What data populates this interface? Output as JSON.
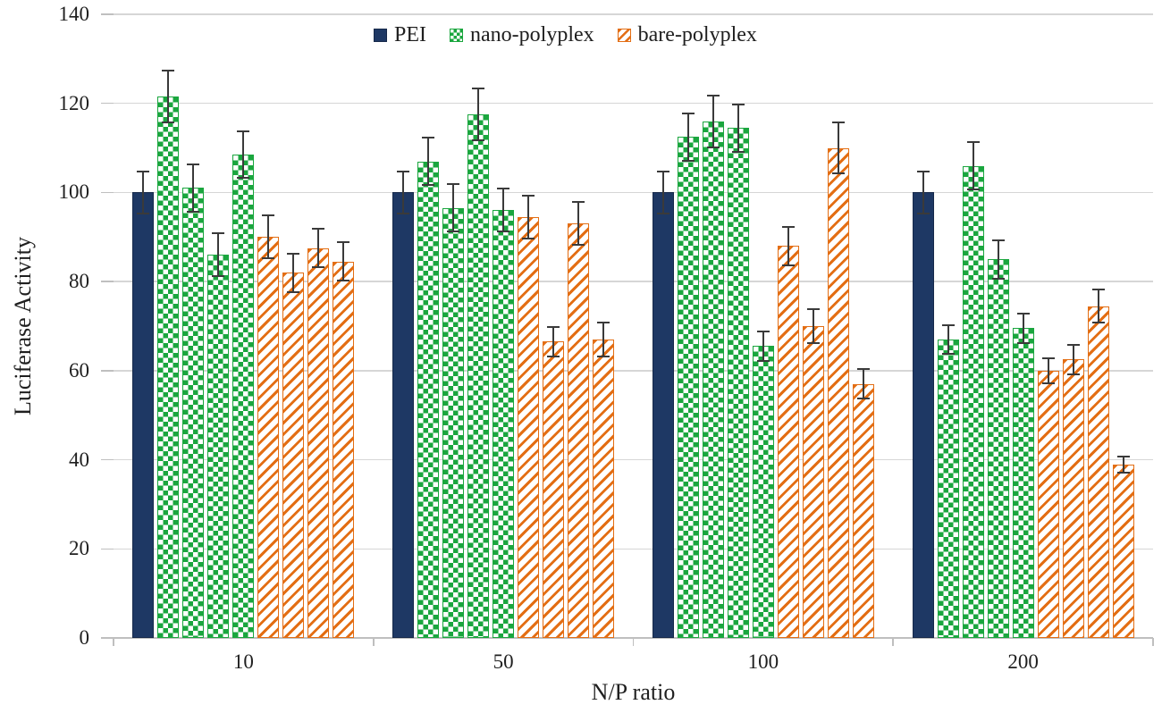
{
  "figure": {
    "type": "scientific-bar-chart",
    "background": "#ffffff"
  },
  "colors": {
    "pei": "#1E3864",
    "nano_polyplex": "#1AA63E",
    "bare_polyplex": "#E36E14",
    "gridline": "#D6D6D6",
    "axis": "#BFBFBF",
    "error_bar": "#3A3A3A",
    "text": "#1F1F1F"
  },
  "chart_data": {
    "type": "bar",
    "title": "",
    "xlabel": "N/P ratio",
    "ylabel": "Luciferase Activity",
    "ylim": [
      0,
      140
    ],
    "yticks": [
      0,
      20,
      40,
      60,
      80,
      100,
      120,
      140
    ],
    "grid": true,
    "legend_position": "top-center",
    "categories": [
      "10",
      "50",
      "100",
      "200"
    ],
    "bars_per_category": 9,
    "bar_order_note": "per category: 1 PEI bar, 4 nano-polyplex bars, 4 bare-polyplex bars",
    "series": [
      {
        "name": "PEI",
        "pattern": "solid",
        "color": "#1E3864",
        "bars_per_group": 1,
        "values": [
          [
            100
          ],
          [
            100
          ],
          [
            100
          ],
          [
            100
          ]
        ],
        "errors": [
          [
            5
          ],
          [
            5
          ],
          [
            5
          ],
          [
            5
          ]
        ]
      },
      {
        "name": "nano-polyplex",
        "pattern": "checker",
        "color": "#1AA63E",
        "bars_per_group": 4,
        "values": [
          [
            121.5,
            101,
            86,
            108.5
          ],
          [
            107,
            96.5,
            117.5,
            96
          ],
          [
            112.5,
            116,
            114.5,
            65.5
          ],
          [
            67,
            106,
            85,
            69.5
          ]
        ],
        "errors": [
          [
            6,
            5.5,
            5,
            5.5
          ],
          [
            5.5,
            5.5,
            6,
            5
          ],
          [
            5.5,
            6,
            5.5,
            3.5
          ],
          [
            3.5,
            5.5,
            4.5,
            3.5
          ]
        ]
      },
      {
        "name": "bare-polyplex",
        "pattern": "diagonal-stripe",
        "color": "#E36E14",
        "bars_per_group": 4,
        "values": [
          [
            90,
            82,
            87.5,
            84.5
          ],
          [
            94.5,
            66.5,
            93,
            67
          ],
          [
            88,
            70,
            110,
            57
          ],
          [
            60,
            62.5,
            74.5,
            39
          ]
        ],
        "errors": [
          [
            5,
            4.5,
            4.5,
            4.5
          ],
          [
            5,
            3.5,
            5,
            4
          ],
          [
            4.5,
            4,
            6,
            3.5
          ],
          [
            3,
            3.5,
            4,
            2
          ]
        ]
      }
    ]
  }
}
